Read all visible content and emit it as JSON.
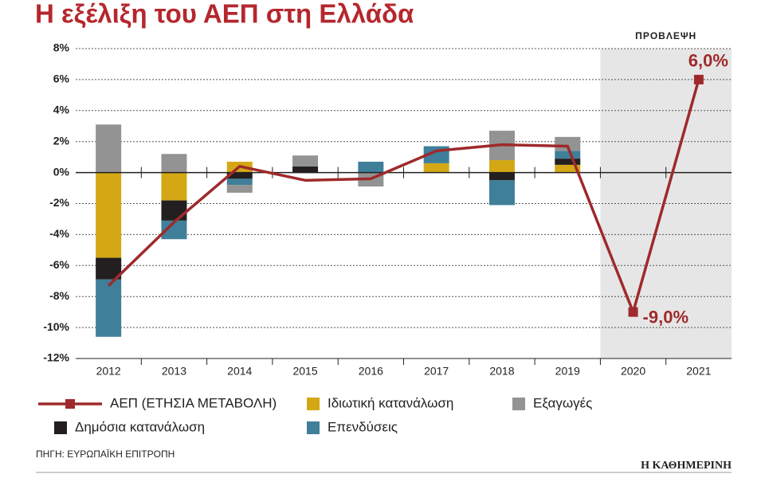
{
  "chart_data": {
    "type": "bar",
    "stacked": true,
    "title": "Η εξέλιξη του ΑΕΠ στη Ελλάδα",
    "source": "ΠΗΓΗ: ΕΥΡΩΠΑΪΚΗ ΕΠΙΤΡΟΠΗ",
    "brand": "Η ΚΑΘΗΜΕΡΙΝΗ",
    "shaded": {
      "label": "ΠΡΟΒΛΕΨΗ",
      "from": "2020"
    },
    "categories": [
      "2012",
      "2013",
      "2014",
      "2015",
      "2016",
      "2017",
      "2018",
      "2019",
      "2020",
      "2021"
    ],
    "series": [
      {
        "name": "ΑΕΠ (ΕΤΗΣΙΑ ΜΕΤΑΒΟΛΗ)",
        "type": "line",
        "color": "#9e2a2b",
        "values": [
          -7.3,
          -3.2,
          0.4,
          -0.5,
          -0.4,
          1.4,
          1.8,
          1.7,
          -9.0,
          6.0
        ],
        "value_labels": [
          null,
          null,
          null,
          null,
          null,
          null,
          null,
          null,
          "-9,0%",
          "6,0%"
        ]
      },
      {
        "name": "Ιδιωτική κατανάλωση",
        "color": "#d4a814",
        "values": [
          -5.5,
          -1.8,
          0.7,
          0,
          0,
          0.6,
          0.8,
          0.5,
          null,
          null
        ]
      },
      {
        "name": "Δημόσια κατανάλωση",
        "color": "#231f20",
        "values": [
          -1.4,
          -1.3,
          -0.4,
          0.4,
          0,
          0,
          -0.5,
          0.4,
          null,
          null
        ]
      },
      {
        "name": "Επενδύσεις",
        "color": "#3f7f9a",
        "values": [
          -3.7,
          -1.2,
          -0.4,
          0,
          0.7,
          1.1,
          -1.6,
          0.5,
          null,
          null
        ]
      },
      {
        "name": "Εξαγωγές",
        "color": "#939393",
        "values": [
          3.1,
          1.2,
          -0.5,
          0.7,
          -0.9,
          0,
          1.9,
          0.9,
          null,
          null
        ]
      }
    ],
    "ylim": [
      -12,
      8
    ],
    "yticks": [
      {
        "value": -12,
        "label": "-12%"
      },
      {
        "value": -10,
        "label": "-10%"
      },
      {
        "value": -8,
        "label": "-8%"
      },
      {
        "value": -6,
        "label": "-6%"
      },
      {
        "value": -4,
        "label": "-4%"
      },
      {
        "value": -2,
        "label": "-2%"
      },
      {
        "value": 0,
        "label": "0%"
      },
      {
        "value": 2,
        "label": "2%"
      },
      {
        "value": 4,
        "label": "4%"
      },
      {
        "value": 6,
        "label": "6%"
      },
      {
        "value": 8,
        "label": "8%"
      }
    ],
    "grid": true
  }
}
